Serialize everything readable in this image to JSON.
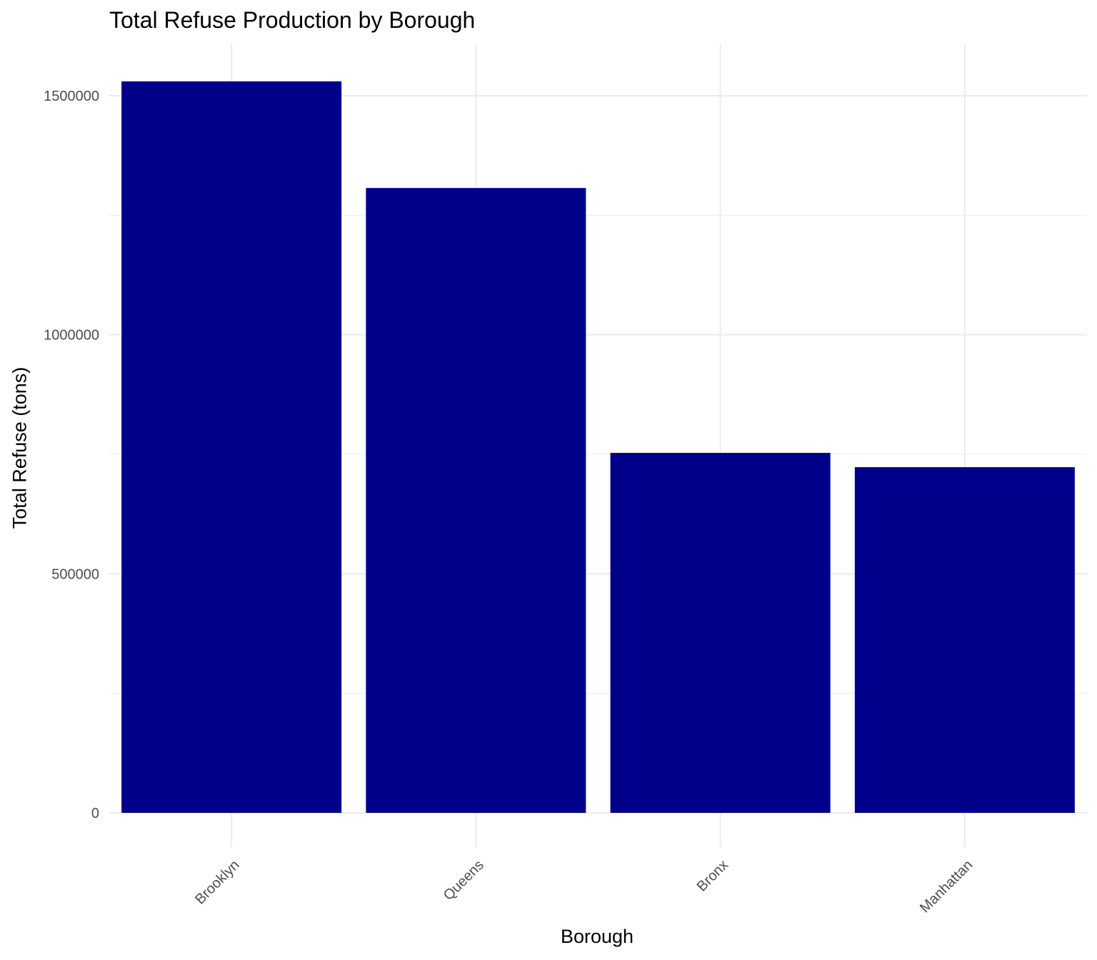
{
  "chart_data": {
    "type": "bar",
    "title": "Total Refuse Production by Borough",
    "xlabel": "Borough",
    "ylabel": "Total Refuse (tons)",
    "categories": [
      "Brooklyn",
      "Queens",
      "Bronx",
      "Manhattan"
    ],
    "values": [
      1530000,
      1307000,
      753000,
      723000
    ],
    "ylim": [
      0,
      1600000
    ],
    "yticks": [
      0,
      500000,
      1000000,
      1500000
    ],
    "ytick_labels": [
      "0",
      "500000",
      "1000000",
      "1500000"
    ],
    "grid": true,
    "legend": "none",
    "bar_color": "#00008B",
    "grid_color": "#EBEBEB"
  }
}
